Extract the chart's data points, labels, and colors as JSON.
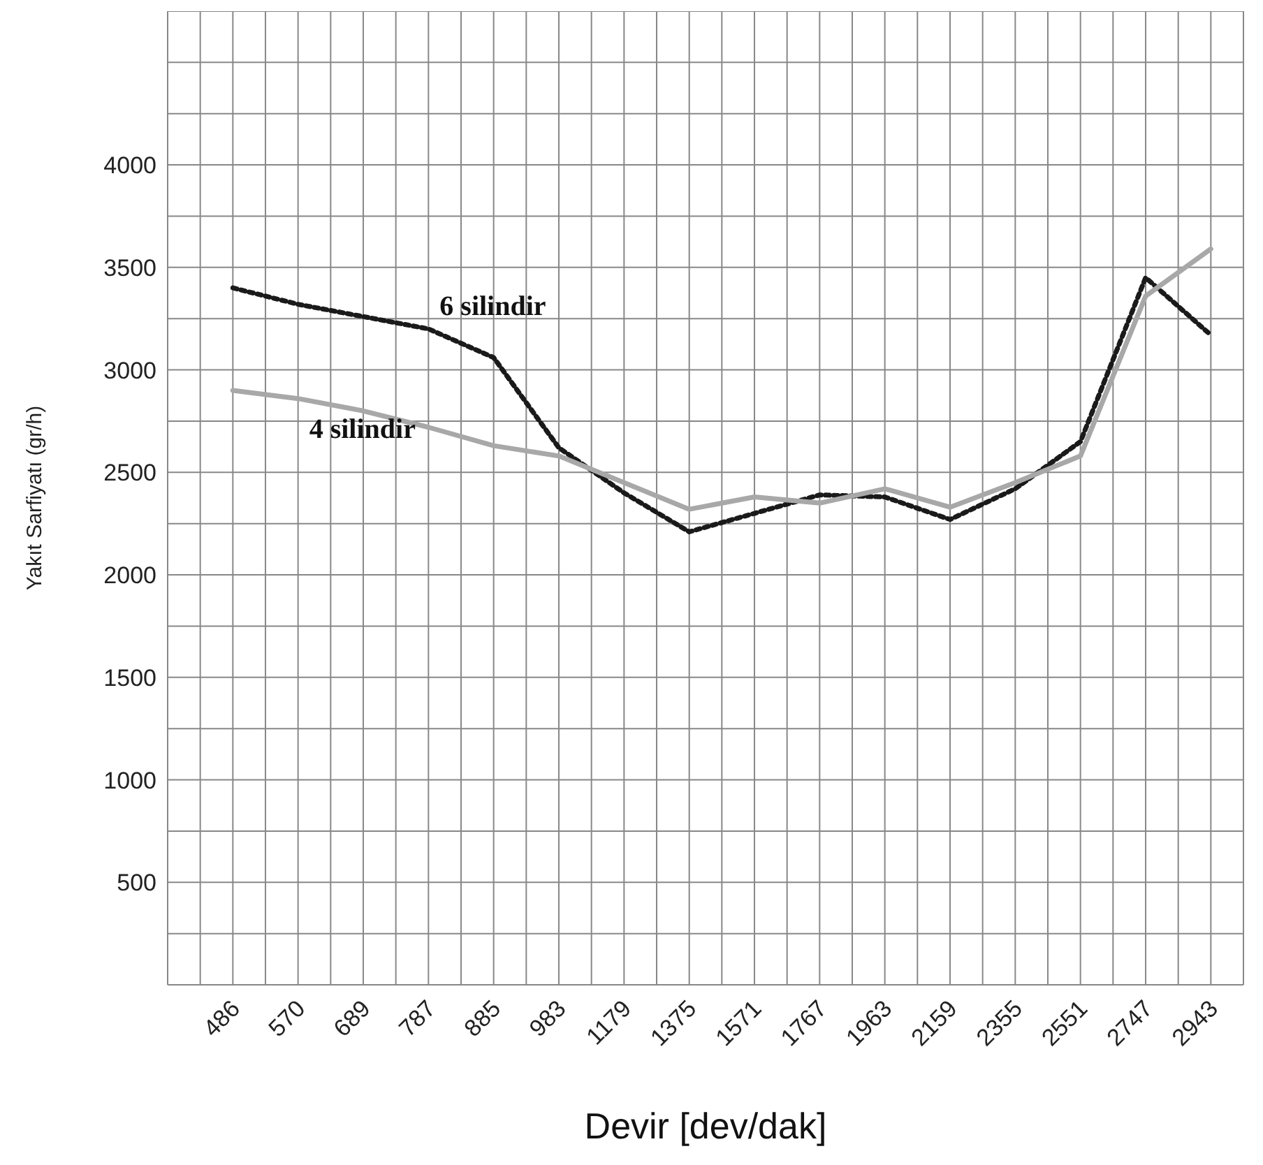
{
  "chart_data": {
    "type": "line",
    "xlabel": "Devir [dev/dak]",
    "ylabel": "Yakıt Sarfiyatı (gr/h)",
    "categories": [
      "486",
      "570",
      "689",
      "787",
      "885",
      "983",
      "1179",
      "1375",
      "1571",
      "1767",
      "1963",
      "2159",
      "2355",
      "2551",
      "2747",
      "2943"
    ],
    "series": [
      {
        "name": "6 silindir",
        "color": "#1a1a1a",
        "line_style": "dotted",
        "values": [
          3400,
          3320,
          3260,
          3200,
          3060,
          2620,
          2400,
          2210,
          2300,
          2390,
          2380,
          2270,
          2420,
          2650,
          3450,
          3170
        ]
      },
      {
        "name": "4 silindir",
        "color": "#a8a8a8",
        "line_style": "solid",
        "values": [
          2900,
          2860,
          2800,
          2720,
          2630,
          2580,
          2450,
          2320,
          2380,
          2350,
          2420,
          2330,
          2450,
          2580,
          3360,
          3590
        ]
      }
    ],
    "ylim": [
      0,
      4750
    ],
    "yticks": [
      {
        "value": 0,
        "label": null
      },
      {
        "value": 250,
        "label": null
      },
      500,
      {
        "value": 750,
        "label": null
      },
      1000,
      {
        "value": 1250,
        "label": null
      },
      1500,
      {
        "value": 1750,
        "label": null
      },
      2000,
      {
        "value": 2250,
        "label": null
      },
      2500,
      {
        "value": 2750,
        "label": null
      },
      3000,
      {
        "value": 3250,
        "label": null
      },
      3500,
      {
        "value": 3750,
        "label": null
      },
      4000,
      {
        "value": 4250,
        "label": null
      },
      {
        "value": 4500,
        "label": null
      },
      {
        "value": 4750,
        "label": null
      }
    ],
    "grid": true,
    "marker": "none"
  }
}
